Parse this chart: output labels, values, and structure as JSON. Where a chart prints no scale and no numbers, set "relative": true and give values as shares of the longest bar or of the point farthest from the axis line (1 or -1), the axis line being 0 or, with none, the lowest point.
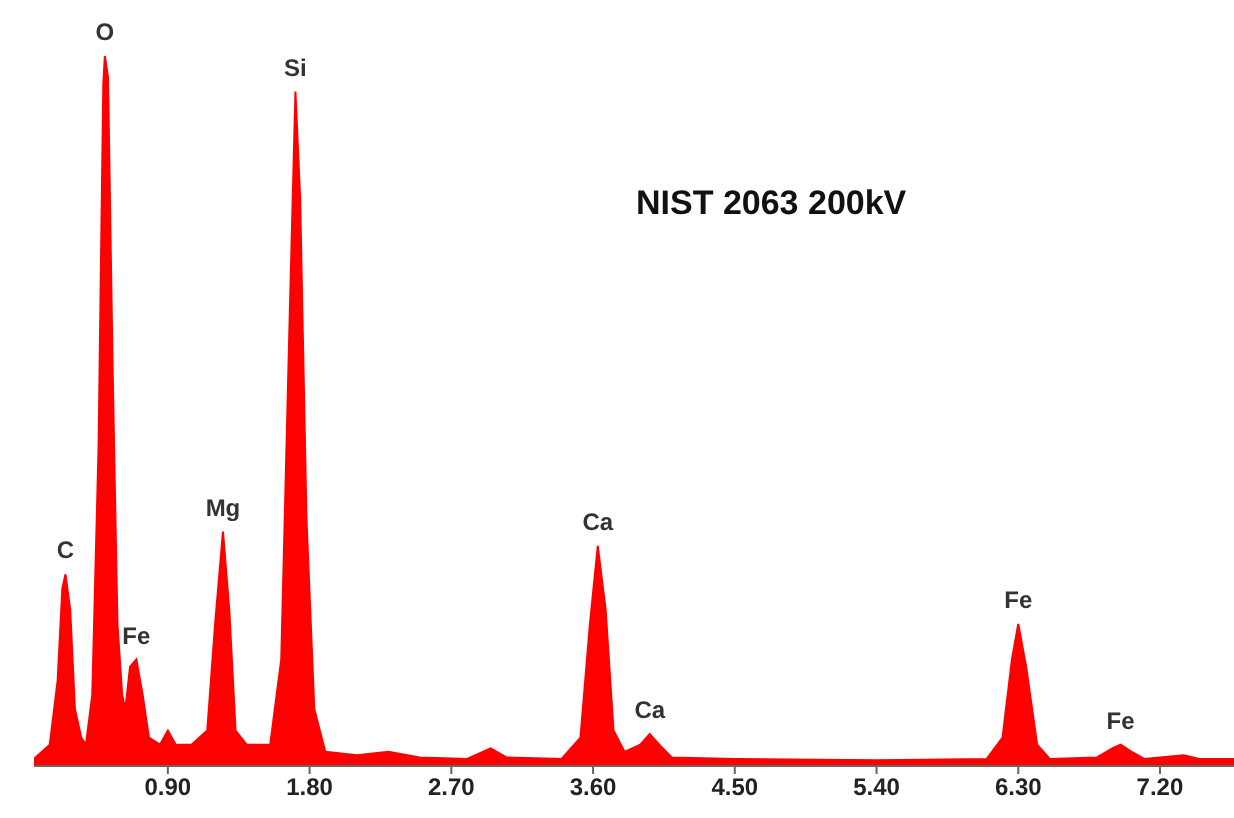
{
  "chart_data": {
    "type": "area",
    "relative": true,
    "color": "#ff0000",
    "grid": false,
    "xlim": [
      0.05,
      7.67
    ],
    "xticks": [
      {
        "value": 0.9,
        "label": "0.90"
      },
      {
        "value": 1.8,
        "label": "1.80"
      },
      {
        "value": 2.7,
        "label": "2.70"
      },
      {
        "value": 3.6,
        "label": "3.60"
      },
      {
        "value": 4.5,
        "label": "4.50"
      },
      {
        "value": 5.4,
        "label": "5.40"
      },
      {
        "value": 6.3,
        "label": "6.30"
      },
      {
        "value": 7.2,
        "label": "7.20"
      }
    ],
    "x": [
      0.05,
      0.15,
      0.2,
      0.23,
      0.25,
      0.28,
      0.31,
      0.35,
      0.38,
      0.42,
      0.46,
      0.49,
      0.5,
      0.52,
      0.55,
      0.58,
      0.61,
      0.63,
      0.66,
      0.7,
      0.74,
      0.78,
      0.85,
      0.9,
      0.95,
      1.05,
      1.15,
      1.2,
      1.25,
      1.29,
      1.33,
      1.4,
      1.55,
      1.62,
      1.67,
      1.71,
      1.74,
      1.78,
      1.83,
      1.9,
      2.1,
      2.3,
      2.5,
      2.8,
      2.95,
      3.05,
      3.4,
      3.52,
      3.58,
      3.63,
      3.68,
      3.73,
      3.8,
      3.9,
      3.96,
      4.02,
      4.1,
      4.5,
      5.4,
      6.1,
      6.2,
      6.26,
      6.3,
      6.35,
      6.42,
      6.5,
      6.8,
      6.9,
      6.95,
      7.02,
      7.1,
      7.35,
      7.45,
      7.67
    ],
    "values": [
      0.01,
      0.03,
      0.12,
      0.25,
      0.27,
      0.22,
      0.08,
      0.04,
      0.03,
      0.1,
      0.45,
      0.96,
      1,
      0.97,
      0.55,
      0.2,
      0.1,
      0.08,
      0.14,
      0.15,
      0.1,
      0.04,
      0.03,
      0.05,
      0.03,
      0.03,
      0.05,
      0.2,
      0.33,
      0.22,
      0.05,
      0.03,
      0.03,
      0.15,
      0.6,
      0.95,
      0.8,
      0.35,
      0.08,
      0.02,
      0.015,
      0.02,
      0.012,
      0.01,
      0.025,
      0.012,
      0.01,
      0.04,
      0.2,
      0.31,
      0.22,
      0.05,
      0.02,
      0.03,
      0.045,
      0.03,
      0.012,
      0.01,
      0.008,
      0.01,
      0.04,
      0.15,
      0.2,
      0.14,
      0.03,
      0.01,
      0.012,
      0.025,
      0.03,
      0.02,
      0.01,
      0.015,
      0.01,
      0.01
    ],
    "annotations": [
      "NIST 2063 200kV",
      {
        "text": "C",
        "x": 0.25,
        "y": 0.27
      },
      {
        "text": "O",
        "x": 0.5,
        "y": 1
      },
      {
        "text": "Fe",
        "x": 0.7,
        "y": 0.15
      },
      {
        "text": "Mg",
        "x": 1.25,
        "y": 0.33
      },
      {
        "text": "Si",
        "x": 1.71,
        "y": 0.95
      },
      {
        "text": "Ca",
        "x": 3.63,
        "y": 0.31
      },
      {
        "text": "Ca",
        "x": 3.96,
        "y": 0.045
      },
      {
        "text": "Fe",
        "x": 6.3,
        "y": 0.2
      },
      {
        "text": "Fe",
        "x": 6.95,
        "y": 0.03
      }
    ]
  }
}
